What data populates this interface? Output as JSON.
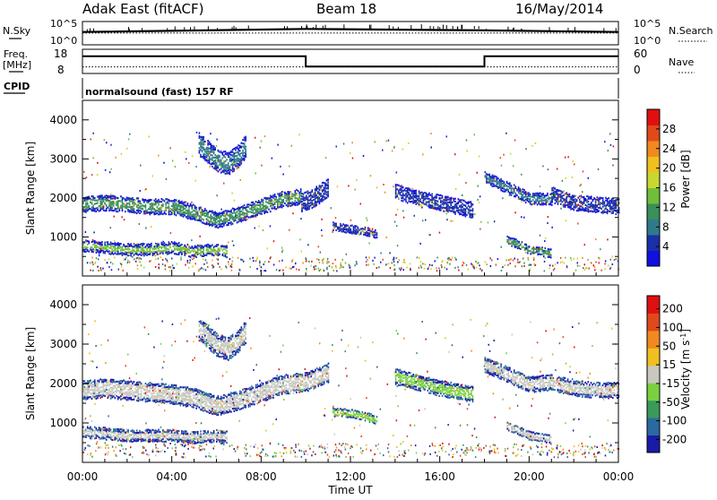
{
  "header": {
    "radar": "Adak East (fitACF)",
    "beam": "Beam 18",
    "date": "16/May/2014"
  },
  "noise_panel": {
    "left_label": "N.Sky",
    "right_label": "N.Search",
    "left_ticks": [
      "10^5",
      "10^0"
    ],
    "right_ticks": [
      "10^5",
      "10^0"
    ]
  },
  "freq_panel": {
    "left_label_1": "Freq.",
    "left_label_2": "[MHz]",
    "right_label": "Nave",
    "left_ticks": [
      "18",
      "8"
    ],
    "right_ticks": [
      "60",
      "0"
    ]
  },
  "cpid": {
    "label": "CPID",
    "program": "normalsound (fast) 157 RF"
  },
  "time_axis": {
    "label": "Time UT",
    "ticks": [
      "00:00",
      "04:00",
      "08:00",
      "12:00",
      "16:00",
      "20:00",
      "00:00"
    ]
  },
  "power_panel": {
    "ylabel": "Slant Range [km]",
    "yticks": [
      "4000",
      "3000",
      "2000",
      "1000"
    ],
    "colorbar_label": "Power [dB]",
    "colorbar_ticks": [
      "28",
      "24",
      "20",
      "16",
      "12",
      "8",
      "4"
    ],
    "colors": [
      "#1010e0",
      "#1a2fa8",
      "#2f7a8a",
      "#3a8f5a",
      "#6fbf3a",
      "#c8d832",
      "#f0c020",
      "#f08a20",
      "#e04a1a",
      "#e01010"
    ]
  },
  "velocity_panel": {
    "ylabel": "Slant Range [km]",
    "yticks": [
      "4000",
      "3000",
      "2000",
      "1000"
    ],
    "colorbar_label": "Velocity [m s",
    "colorbar_unit_sup": "-1",
    "colorbar_unit_close": "]",
    "colorbar_ticks": [
      "200",
      "100",
      "50",
      "15",
      "-15",
      "-50",
      "-100",
      "-200"
    ],
    "colors": [
      "#1a1aa8",
      "#2a6aa0",
      "#3a9a5a",
      "#7ad040",
      "#c8c8c0",
      "#f0c020",
      "#f08a20",
      "#e04a1a",
      "#e01010"
    ]
  },
  "chart_data": {
    "type": "heatmap",
    "x_unit": "hours UT",
    "xlim": [
      0,
      24
    ],
    "ylim": [
      0,
      4500
    ],
    "noise_sky_trace": [
      [
        0,
        0.55
      ],
      [
        10,
        0.68
      ],
      [
        18,
        0.62
      ],
      [
        24,
        0.55
      ]
    ],
    "noise_search_trace": [
      [
        0,
        0.58
      ],
      [
        24,
        0.58
      ]
    ],
    "freq_trace": [
      [
        0,
        16
      ],
      [
        10,
        16
      ],
      [
        10,
        10
      ],
      [
        18,
        10
      ],
      [
        18,
        16
      ],
      [
        24,
        16
      ]
    ],
    "nave_trace": [
      [
        0,
        12
      ],
      [
        24,
        12
      ]
    ],
    "power_bands": [
      {
        "t": [
          0,
          9.8
        ],
        "r": [
          [
            0,
            1850
          ],
          [
            1,
            1900
          ],
          [
            2,
            1850
          ],
          [
            3,
            1800
          ],
          [
            4,
            1800
          ],
          [
            5,
            1650
          ],
          [
            6,
            1450
          ],
          [
            7,
            1600
          ],
          [
            8,
            1800
          ],
          [
            9,
            2000
          ],
          [
            9.8,
            2050
          ]
        ],
        "w": 180,
        "core": "#3a8f5a"
      },
      {
        "t": [
          0,
          6.5
        ],
        "r": [
          [
            0,
            800
          ],
          [
            1,
            750
          ],
          [
            2,
            700
          ],
          [
            3,
            700
          ],
          [
            4,
            750
          ],
          [
            5,
            650
          ],
          [
            6,
            700
          ],
          [
            6.5,
            650
          ]
        ],
        "w": 120,
        "core": "#6fbf3a"
      },
      {
        "t": [
          5.2,
          7.3
        ],
        "r": [
          [
            5.2,
            3400
          ],
          [
            6,
            3000
          ],
          [
            6.5,
            2900
          ],
          [
            7,
            3100
          ],
          [
            7.3,
            3350
          ]
        ],
        "w": 250,
        "core": "#2f7a8a"
      },
      {
        "t": [
          9.8,
          11.0
        ],
        "r": [
          [
            9.8,
            1900
          ],
          [
            10.3,
            2000
          ],
          [
            11.0,
            2300
          ]
        ],
        "w": 220,
        "core": "#1a2fa8"
      },
      {
        "t": [
          11.2,
          13.2
        ],
        "r": [
          [
            11.2,
            1300
          ],
          [
            12.2,
            1200
          ],
          [
            13.2,
            1100
          ]
        ],
        "w": 80,
        "core": "#1a2fa8"
      },
      {
        "t": [
          14.0,
          17.5
        ],
        "r": [
          [
            14.0,
            2200
          ],
          [
            15.0,
            2000
          ],
          [
            16.0,
            1900
          ],
          [
            17.5,
            1700
          ]
        ],
        "w": 160,
        "core": "#1a2fa8"
      },
      {
        "t": [
          18.0,
          21.0
        ],
        "r": [
          [
            18.0,
            2550
          ],
          [
            19.0,
            2300
          ],
          [
            20.0,
            2000
          ],
          [
            21.0,
            2000
          ]
        ],
        "w": 150,
        "core": "#2f7a8a"
      },
      {
        "t": [
          21.0,
          24
        ],
        "r": [
          [
            21.0,
            2100
          ],
          [
            22.0,
            1900
          ],
          [
            23.0,
            1850
          ],
          [
            24,
            1800
          ]
        ],
        "w": 160,
        "core": "#1a2fa8"
      },
      {
        "t": [
          19.0,
          21.0
        ],
        "r": [
          [
            19.0,
            950
          ],
          [
            20.0,
            700
          ],
          [
            21.0,
            600
          ]
        ],
        "w": 100,
        "core": "#3a8f5a"
      }
    ],
    "velocity_bands": [
      {
        "t": [
          0,
          11.0
        ],
        "r": [
          [
            0,
            1850
          ],
          [
            1,
            1900
          ],
          [
            2,
            1850
          ],
          [
            3,
            1800
          ],
          [
            4,
            1750
          ],
          [
            5,
            1650
          ],
          [
            6,
            1450
          ],
          [
            7,
            1600
          ],
          [
            8,
            1800
          ],
          [
            9,
            2000
          ],
          [
            10,
            2050
          ],
          [
            11,
            2300
          ]
        ],
        "w": 220,
        "core": "#c8c8c0"
      },
      {
        "t": [
          0,
          6.5
        ],
        "r": [
          [
            0,
            800
          ],
          [
            1,
            750
          ],
          [
            2,
            700
          ],
          [
            3,
            700
          ],
          [
            4,
            700
          ],
          [
            5,
            650
          ],
          [
            6,
            700
          ],
          [
            6.5,
            650
          ]
        ],
        "w": 130,
        "core": "#c8c8c0"
      },
      {
        "t": [
          5.2,
          7.3
        ],
        "r": [
          [
            5.2,
            3400
          ],
          [
            6,
            3000
          ],
          [
            6.5,
            2900
          ],
          [
            7,
            3100
          ],
          [
            7.3,
            3350
          ]
        ],
        "w": 260,
        "core": "#c8c8c0"
      },
      {
        "t": [
          11.2,
          13.2
        ],
        "r": [
          [
            11.2,
            1300
          ],
          [
            12.2,
            1250
          ],
          [
            13.2,
            1100
          ]
        ],
        "w": 90,
        "core": "#7ad040"
      },
      {
        "t": [
          14.0,
          17.5
        ],
        "r": [
          [
            14.0,
            2200
          ],
          [
            15.0,
            2050
          ],
          [
            16.0,
            1900
          ],
          [
            17.5,
            1750
          ]
        ],
        "w": 170,
        "core": "#7ad040"
      },
      {
        "t": [
          18.0,
          24
        ],
        "r": [
          [
            18.0,
            2500
          ],
          [
            19.0,
            2250
          ],
          [
            20.0,
            2000
          ],
          [
            21.0,
            2050
          ],
          [
            22.0,
            1900
          ],
          [
            23.0,
            1850
          ],
          [
            24,
            1850
          ]
        ],
        "w": 170,
        "core": "#c8c8c0"
      },
      {
        "t": [
          19.0,
          21.0
        ],
        "r": [
          [
            19.0,
            950
          ],
          [
            20.0,
            700
          ],
          [
            21.0,
            600
          ]
        ],
        "w": 100,
        "core": "#c8c8c0"
      }
    ]
  }
}
